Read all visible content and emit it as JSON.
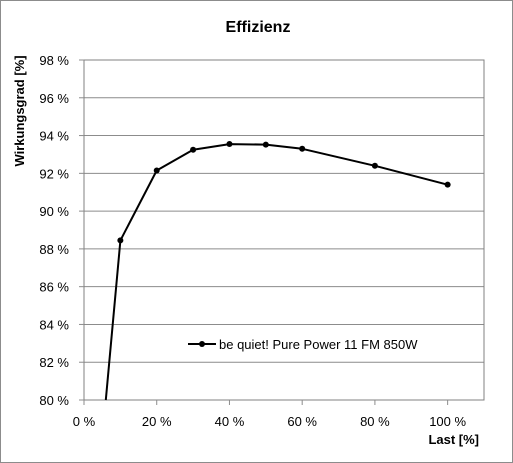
{
  "chart_data": {
    "type": "line",
    "title": "Effizienz",
    "xlabel": "Last [%]",
    "ylabel": "Wirkungsgrad [%]",
    "xlim": [
      0,
      110
    ],
    "ylim": [
      80,
      98
    ],
    "x_ticks": [
      0,
      20,
      40,
      60,
      80,
      100
    ],
    "x_tick_labels": [
      "0 %",
      "20 %",
      "40 %",
      "60 %",
      "80 %",
      "100 %"
    ],
    "y_ticks": [
      80,
      82,
      84,
      86,
      88,
      90,
      92,
      94,
      96,
      98
    ],
    "y_tick_labels": [
      "80 %",
      "82 %",
      "84 %",
      "86 %",
      "88 %",
      "90 %",
      "92 %",
      "94 %",
      "96 %",
      "98 %"
    ],
    "grid": "horizontal",
    "legend_position": "bottom-right",
    "series": [
      {
        "name": "be quiet! Pure Power 11 FM 850W",
        "color": "#000000",
        "x": [
          6,
          10,
          20,
          30,
          40,
          50,
          60,
          80,
          100
        ],
        "y": [
          80.0,
          88.45,
          92.15,
          93.25,
          93.55,
          93.52,
          93.3,
          92.4,
          91.4
        ],
        "markers": [
          false,
          true,
          true,
          true,
          true,
          true,
          true,
          true,
          true
        ]
      }
    ]
  }
}
